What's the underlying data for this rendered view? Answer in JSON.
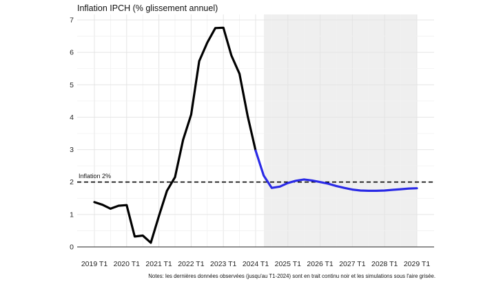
{
  "chart_data": {
    "type": "line",
    "title": "Inflation IPCH (% glissement annuel)",
    "xlabel": "",
    "ylabel": "",
    "ylim": [
      0,
      7
    ],
    "yticks": [
      0,
      1,
      2,
      3,
      4,
      5,
      6,
      7
    ],
    "x_tick_labels": [
      "2019 T1",
      "2020 T1",
      "2021 T1",
      "2022 T1",
      "2023 T1",
      "2024 T1",
      "2025 T1",
      "2026 T1",
      "2027 T1",
      "2028 T1",
      "2029 T1"
    ],
    "grid": true,
    "reference_line": {
      "value": 2,
      "label": "Inflation 2%",
      "style": "dashed"
    },
    "shaded_region": {
      "from": "2024 T1",
      "to": "2029 T1",
      "meaning": "simulations"
    },
    "note": "Notes: les dernières données observées (jusqu'au T1-2024) sont en trait continu noir et les simulations sous l'aire grisée.",
    "colors": {
      "observed": "#000000",
      "simulated": "#2a2ae6",
      "shade": "#efefef",
      "reference": "#000000"
    },
    "series": [
      {
        "id": "observed",
        "x": [
          "2019 T1",
          "2019 T2",
          "2019 T3",
          "2019 T4",
          "2020 T1",
          "2020 T2",
          "2020 T3",
          "2020 T4",
          "2021 T1",
          "2021 T2",
          "2021 T3",
          "2021 T4",
          "2022 T1",
          "2022 T2",
          "2022 T3",
          "2022 T4",
          "2023 T1",
          "2023 T2",
          "2023 T3",
          "2023 T4",
          "2024 T1"
        ],
        "values": [
          1.38,
          1.3,
          1.18,
          1.27,
          1.29,
          0.32,
          0.35,
          0.13,
          0.95,
          1.73,
          2.15,
          3.3,
          4.08,
          5.73,
          6.3,
          6.75,
          6.76,
          5.9,
          5.34,
          4.05,
          2.97
        ]
      },
      {
        "id": "simulated",
        "x": [
          "2024 T1",
          "2024 T2",
          "2024 T3",
          "2024 T4",
          "2025 T1",
          "2025 T2",
          "2025 T3",
          "2025 T4",
          "2026 T1",
          "2026 T2",
          "2026 T3",
          "2026 T4",
          "2027 T1",
          "2027 T2",
          "2027 T3",
          "2027 T4",
          "2028 T1",
          "2028 T2",
          "2028 T3",
          "2028 T4",
          "2029 T1"
        ],
        "values": [
          2.97,
          2.2,
          1.82,
          1.86,
          1.97,
          2.04,
          2.08,
          2.05,
          2.0,
          1.95,
          1.88,
          1.82,
          1.77,
          1.74,
          1.73,
          1.73,
          1.74,
          1.76,
          1.78,
          1.8,
          1.81
        ]
      }
    ]
  }
}
